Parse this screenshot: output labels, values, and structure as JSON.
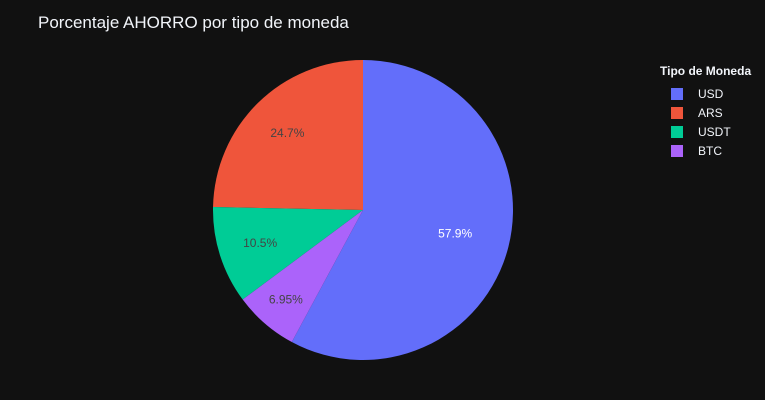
{
  "chart_data": {
    "type": "pie",
    "title": "Porcentaje AHORRO por tipo de moneda",
    "legend_title": "Tipo de Moneda",
    "legend_position": "right",
    "categories": [
      "USD",
      "ARS",
      "USDT",
      "BTC"
    ],
    "values": [
      57.9,
      24.7,
      10.5,
      6.95
    ],
    "labels": [
      "57.9%",
      "24.7%",
      "10.5%",
      "6.95%"
    ],
    "colors": [
      "#636efa",
      "#ef553b",
      "#00cc96",
      "#ab63fa"
    ],
    "label_colors": [
      "#ffffff",
      "#444444",
      "#444444",
      "#444444"
    ],
    "background": "#111111"
  }
}
